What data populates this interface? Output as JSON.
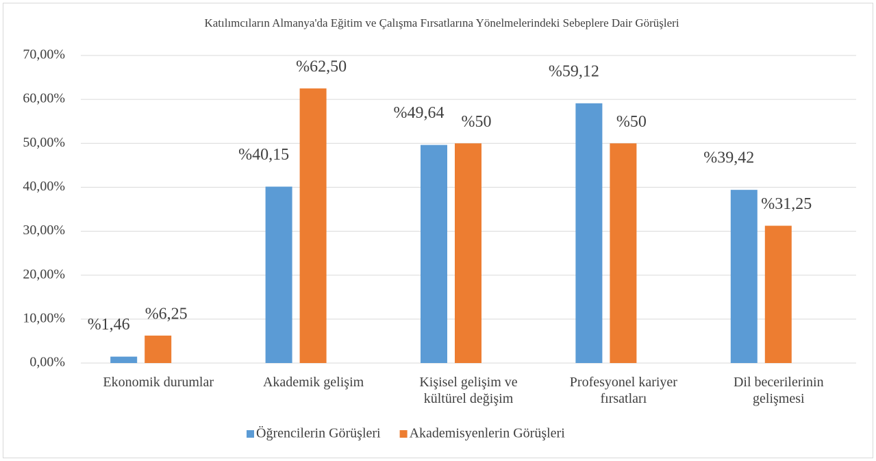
{
  "chart_data": {
    "type": "bar",
    "title": "Katılımcıların Almanya'da Eğitim ve Çalışma Fırsatlarına Yönelmelerindeki Sebeplere Dair Görüşleri",
    "categories": [
      "Ekonomik durumlar",
      "Akademik gelişim",
      "Kişisel gelişim ve kültürel değişim",
      "Profesyonel kariyer fırsatları",
      "Dil becerilerinin gelişmesi"
    ],
    "series": [
      {
        "name": "Öğrencilerin Görüşleri",
        "color": "#5b9bd5",
        "values": [
          1.46,
          40.15,
          49.64,
          59.12,
          39.42
        ],
        "value_labels": [
          "%1,46",
          "%40,15",
          "%49,64",
          "%59,12",
          "%39,42"
        ]
      },
      {
        "name": "Akademisyenlerin Görüşleri",
        "color": "#ed7d31",
        "values": [
          6.25,
          62.5,
          50,
          50,
          31.25
        ],
        "value_labels": [
          "%6,25",
          "%62,50",
          "%50",
          "%50",
          "%31,25"
        ]
      }
    ],
    "ylim": [
      0,
      70
    ],
    "yticks": [
      {
        "value": 0,
        "label": "0,00%"
      },
      {
        "value": 10,
        "label": "10,00%"
      },
      {
        "value": 20,
        "label": "20,00%"
      },
      {
        "value": 30,
        "label": "30,00%"
      },
      {
        "value": 40,
        "label": "40,00%"
      },
      {
        "value": 50,
        "label": "50,00%"
      },
      {
        "value": 60,
        "label": "60,00%"
      },
      {
        "value": 70,
        "label": "70,00%"
      }
    ],
    "grid": true,
    "legend": "bottom"
  }
}
